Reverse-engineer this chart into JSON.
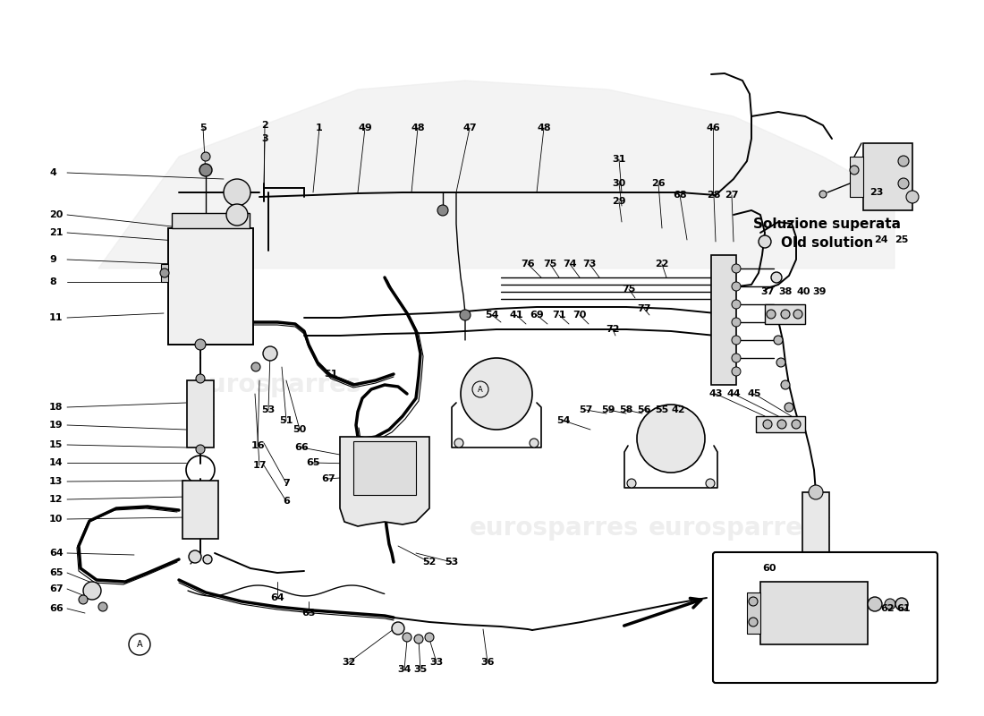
{
  "bg_color": "#ffffff",
  "lc": "#000000",
  "gray1": "#e8e8e8",
  "gray2": "#d0d0d0",
  "gray3": "#aaaaaa",
  "old_solution_text1": "Soluzione superata",
  "old_solution_text2": "Old solution",
  "watermark1": "eurosparres",
  "watermark2": "eurosparres"
}
